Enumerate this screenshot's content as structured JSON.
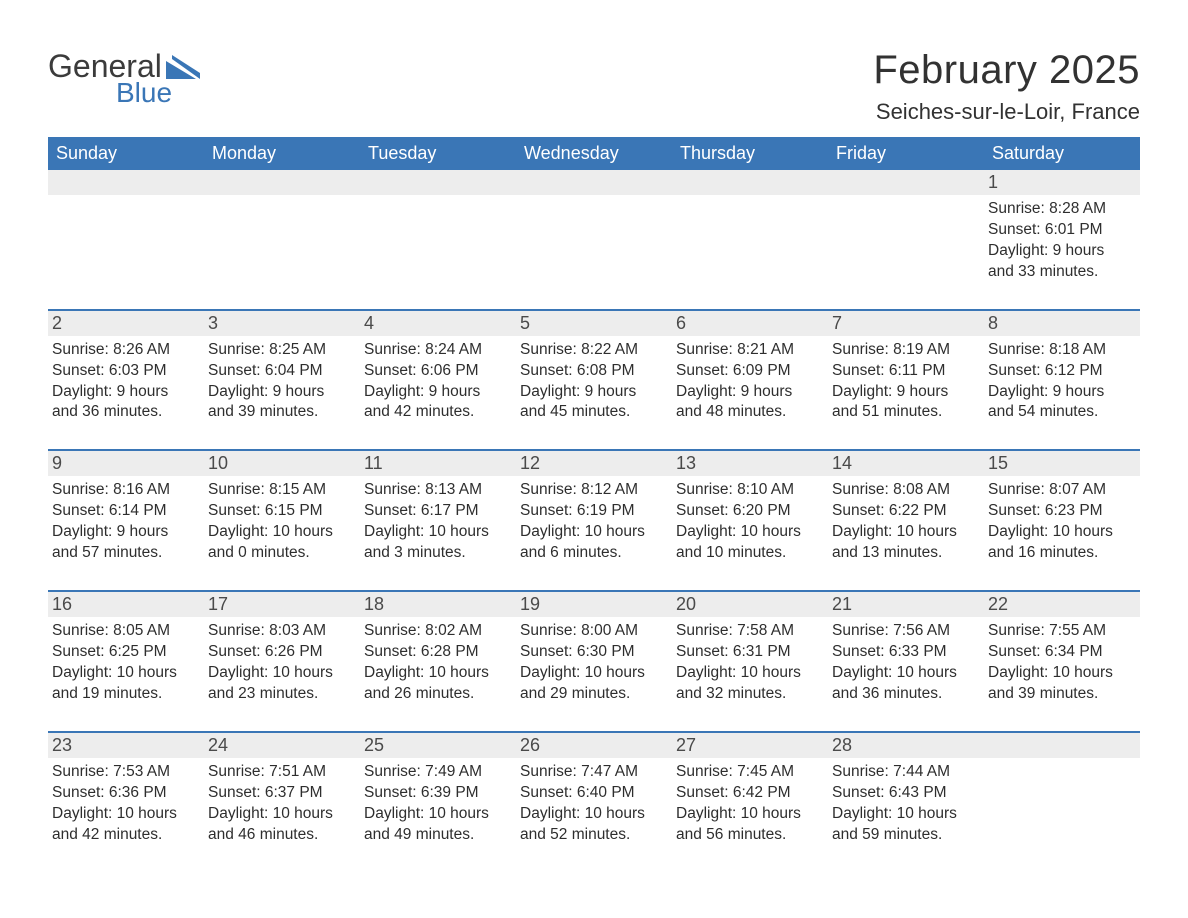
{
  "brand": {
    "word1": "General",
    "word2": "Blue"
  },
  "colors": {
    "header_bg": "#3a76b6",
    "header_text": "#ffffff",
    "daynum_bg": "#ededed",
    "row_border": "#3a76b6",
    "body_text": "#2e2e2e",
    "title_text": "#323232",
    "logo_gray": "#3b3b3b",
    "logo_blue": "#3a76b6",
    "page_bg": "#ffffff"
  },
  "typography": {
    "month_title_pt": 40,
    "location_pt": 22,
    "dow_pt": 18,
    "daynum_pt": 18,
    "body_pt": 15.5
  },
  "title": "February 2025",
  "location": "Seiches-sur-le-Loir, France",
  "days_of_week": [
    "Sunday",
    "Monday",
    "Tuesday",
    "Wednesday",
    "Thursday",
    "Friday",
    "Saturday"
  ],
  "weeks": [
    [
      {
        "empty": true
      },
      {
        "empty": true
      },
      {
        "empty": true
      },
      {
        "empty": true
      },
      {
        "empty": true
      },
      {
        "empty": true
      },
      {
        "n": "1",
        "sunrise": "Sunrise: 8:28 AM",
        "sunset": "Sunset: 6:01 PM",
        "dl1": "Daylight: 9 hours",
        "dl2": "and 33 minutes."
      }
    ],
    [
      {
        "n": "2",
        "sunrise": "Sunrise: 8:26 AM",
        "sunset": "Sunset: 6:03 PM",
        "dl1": "Daylight: 9 hours",
        "dl2": "and 36 minutes."
      },
      {
        "n": "3",
        "sunrise": "Sunrise: 8:25 AM",
        "sunset": "Sunset: 6:04 PM",
        "dl1": "Daylight: 9 hours",
        "dl2": "and 39 minutes."
      },
      {
        "n": "4",
        "sunrise": "Sunrise: 8:24 AM",
        "sunset": "Sunset: 6:06 PM",
        "dl1": "Daylight: 9 hours",
        "dl2": "and 42 minutes."
      },
      {
        "n": "5",
        "sunrise": "Sunrise: 8:22 AM",
        "sunset": "Sunset: 6:08 PM",
        "dl1": "Daylight: 9 hours",
        "dl2": "and 45 minutes."
      },
      {
        "n": "6",
        "sunrise": "Sunrise: 8:21 AM",
        "sunset": "Sunset: 6:09 PM",
        "dl1": "Daylight: 9 hours",
        "dl2": "and 48 minutes."
      },
      {
        "n": "7",
        "sunrise": "Sunrise: 8:19 AM",
        "sunset": "Sunset: 6:11 PM",
        "dl1": "Daylight: 9 hours",
        "dl2": "and 51 minutes."
      },
      {
        "n": "8",
        "sunrise": "Sunrise: 8:18 AM",
        "sunset": "Sunset: 6:12 PM",
        "dl1": "Daylight: 9 hours",
        "dl2": "and 54 minutes."
      }
    ],
    [
      {
        "n": "9",
        "sunrise": "Sunrise: 8:16 AM",
        "sunset": "Sunset: 6:14 PM",
        "dl1": "Daylight: 9 hours",
        "dl2": "and 57 minutes."
      },
      {
        "n": "10",
        "sunrise": "Sunrise: 8:15 AM",
        "sunset": "Sunset: 6:15 PM",
        "dl1": "Daylight: 10 hours",
        "dl2": "and 0 minutes."
      },
      {
        "n": "11",
        "sunrise": "Sunrise: 8:13 AM",
        "sunset": "Sunset: 6:17 PM",
        "dl1": "Daylight: 10 hours",
        "dl2": "and 3 minutes."
      },
      {
        "n": "12",
        "sunrise": "Sunrise: 8:12 AM",
        "sunset": "Sunset: 6:19 PM",
        "dl1": "Daylight: 10 hours",
        "dl2": "and 6 minutes."
      },
      {
        "n": "13",
        "sunrise": "Sunrise: 8:10 AM",
        "sunset": "Sunset: 6:20 PM",
        "dl1": "Daylight: 10 hours",
        "dl2": "and 10 minutes."
      },
      {
        "n": "14",
        "sunrise": "Sunrise: 8:08 AM",
        "sunset": "Sunset: 6:22 PM",
        "dl1": "Daylight: 10 hours",
        "dl2": "and 13 minutes."
      },
      {
        "n": "15",
        "sunrise": "Sunrise: 8:07 AM",
        "sunset": "Sunset: 6:23 PM",
        "dl1": "Daylight: 10 hours",
        "dl2": "and 16 minutes."
      }
    ],
    [
      {
        "n": "16",
        "sunrise": "Sunrise: 8:05 AM",
        "sunset": "Sunset: 6:25 PM",
        "dl1": "Daylight: 10 hours",
        "dl2": "and 19 minutes."
      },
      {
        "n": "17",
        "sunrise": "Sunrise: 8:03 AM",
        "sunset": "Sunset: 6:26 PM",
        "dl1": "Daylight: 10 hours",
        "dl2": "and 23 minutes."
      },
      {
        "n": "18",
        "sunrise": "Sunrise: 8:02 AM",
        "sunset": "Sunset: 6:28 PM",
        "dl1": "Daylight: 10 hours",
        "dl2": "and 26 minutes."
      },
      {
        "n": "19",
        "sunrise": "Sunrise: 8:00 AM",
        "sunset": "Sunset: 6:30 PM",
        "dl1": "Daylight: 10 hours",
        "dl2": "and 29 minutes."
      },
      {
        "n": "20",
        "sunrise": "Sunrise: 7:58 AM",
        "sunset": "Sunset: 6:31 PM",
        "dl1": "Daylight: 10 hours",
        "dl2": "and 32 minutes."
      },
      {
        "n": "21",
        "sunrise": "Sunrise: 7:56 AM",
        "sunset": "Sunset: 6:33 PM",
        "dl1": "Daylight: 10 hours",
        "dl2": "and 36 minutes."
      },
      {
        "n": "22",
        "sunrise": "Sunrise: 7:55 AM",
        "sunset": "Sunset: 6:34 PM",
        "dl1": "Daylight: 10 hours",
        "dl2": "and 39 minutes."
      }
    ],
    [
      {
        "n": "23",
        "sunrise": "Sunrise: 7:53 AM",
        "sunset": "Sunset: 6:36 PM",
        "dl1": "Daylight: 10 hours",
        "dl2": "and 42 minutes."
      },
      {
        "n": "24",
        "sunrise": "Sunrise: 7:51 AM",
        "sunset": "Sunset: 6:37 PM",
        "dl1": "Daylight: 10 hours",
        "dl2": "and 46 minutes."
      },
      {
        "n": "25",
        "sunrise": "Sunrise: 7:49 AM",
        "sunset": "Sunset: 6:39 PM",
        "dl1": "Daylight: 10 hours",
        "dl2": "and 49 minutes."
      },
      {
        "n": "26",
        "sunrise": "Sunrise: 7:47 AM",
        "sunset": "Sunset: 6:40 PM",
        "dl1": "Daylight: 10 hours",
        "dl2": "and 52 minutes."
      },
      {
        "n": "27",
        "sunrise": "Sunrise: 7:45 AM",
        "sunset": "Sunset: 6:42 PM",
        "dl1": "Daylight: 10 hours",
        "dl2": "and 56 minutes."
      },
      {
        "n": "28",
        "sunrise": "Sunrise: 7:44 AM",
        "sunset": "Sunset: 6:43 PM",
        "dl1": "Daylight: 10 hours",
        "dl2": "and 59 minutes."
      },
      {
        "empty": true
      }
    ]
  ]
}
